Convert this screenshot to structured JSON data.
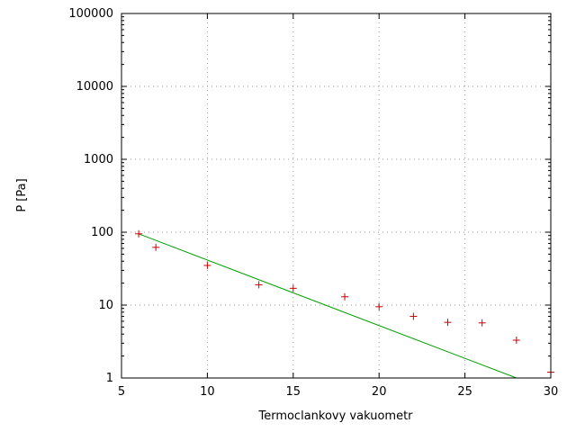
{
  "chart_data": {
    "type": "scatter",
    "title": "",
    "xlabel": "Termoclankovy vakuometr",
    "ylabel": "P [Pa]",
    "xlim": [
      5,
      30
    ],
    "ylim": [
      1,
      100000
    ],
    "ylog": true,
    "grid": true,
    "xticks": [
      5,
      10,
      15,
      20,
      25,
      30
    ],
    "yticks": [
      1,
      10,
      100,
      1000,
      10000,
      100000
    ],
    "colors": {
      "points": "#cc0000",
      "fit_line": "#00a000",
      "grid": "#9a9a9a",
      "border": "#000000"
    },
    "series": [
      {
        "name": "measured-points",
        "type": "points",
        "marker": "plus",
        "points": [
          [
            6,
            95
          ],
          [
            7,
            62
          ],
          [
            10,
            35
          ],
          [
            13,
            19
          ],
          [
            15,
            17
          ],
          [
            18,
            13
          ],
          [
            20,
            9.5
          ],
          [
            22,
            7
          ],
          [
            24,
            5.8
          ],
          [
            26,
            5.7
          ],
          [
            28,
            3.3
          ],
          [
            30,
            1.2
          ]
        ]
      },
      {
        "name": "fit-line",
        "type": "line",
        "points": [
          [
            6,
            95
          ],
          [
            28,
            1
          ]
        ]
      }
    ]
  }
}
